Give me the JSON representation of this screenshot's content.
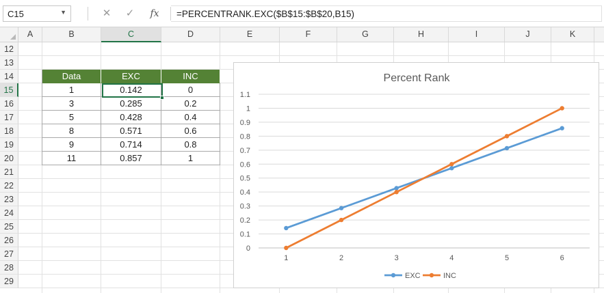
{
  "formula_bar": {
    "name_box": "C15",
    "cancel_icon": "close-icon",
    "enter_icon": "check-icon",
    "fx_label": "fx",
    "formula": "=PERCENTRANK.EXC($B$15:$B$20,B15)"
  },
  "columns": [
    "A",
    "B",
    "C",
    "D",
    "E",
    "F",
    "G",
    "H",
    "I",
    "J",
    "K"
  ],
  "selected_column": "C",
  "rows": [
    "12",
    "13",
    "14",
    "15",
    "16",
    "17",
    "18",
    "19",
    "20",
    "21",
    "22",
    "23",
    "24",
    "25",
    "26",
    "27",
    "28",
    "29"
  ],
  "selected_row": "15",
  "table": {
    "headers": [
      "Data",
      "EXC",
      "INC"
    ],
    "rows": [
      [
        "1",
        "0.142",
        "0"
      ],
      [
        "3",
        "0.285",
        "0.2"
      ],
      [
        "5",
        "0.428",
        "0.4"
      ],
      [
        "8",
        "0.571",
        "0.6"
      ],
      [
        "9",
        "0.714",
        "0.8"
      ],
      [
        "11",
        "0.857",
        "1"
      ]
    ]
  },
  "chart_data": {
    "type": "line",
    "title": "Percent Rank",
    "x": [
      1,
      2,
      3,
      4,
      5,
      6
    ],
    "series": [
      {
        "name": "EXC",
        "color": "#5b9bd5",
        "values": [
          0.142,
          0.285,
          0.428,
          0.571,
          0.714,
          0.857
        ]
      },
      {
        "name": "INC",
        "color": "#ed7d31",
        "values": [
          0,
          0.2,
          0.4,
          0.6,
          0.8,
          1
        ]
      }
    ],
    "ylim": [
      0,
      1.1
    ],
    "yticks": [
      "0",
      "0.1",
      "0.2",
      "0.3",
      "0.4",
      "0.5",
      "0.6",
      "0.7",
      "0.8",
      "0.9",
      "1",
      "1.1"
    ],
    "xticks": [
      "1",
      "2",
      "3",
      "4",
      "5",
      "6"
    ],
    "grid": true,
    "legend": "bottom"
  }
}
